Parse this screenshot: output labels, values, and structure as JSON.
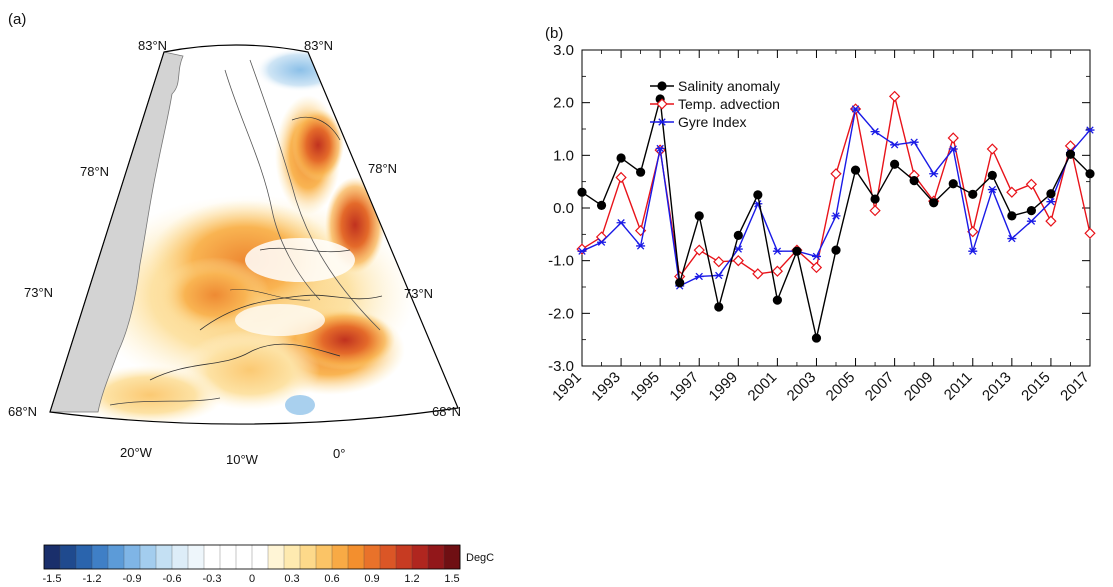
{
  "panel_a": {
    "label": "(a)",
    "lat_labels": [
      "83°N",
      "83°N",
      "78°N",
      "78°N",
      "73°N",
      "73°N",
      "68°N",
      "68°N"
    ],
    "lon_labels": [
      "20°W",
      "10°W",
      "0°"
    ]
  },
  "colorbar": {
    "unit": "DegC",
    "tick_labels": [
      "-1.5",
      "-1.2",
      "-0.9",
      "-0.6",
      "-0.3",
      "0",
      "0.3",
      "0.6",
      "0.9",
      "1.2",
      "1.5"
    ],
    "colors": [
      "#1a2f6b",
      "#1f4a8e",
      "#2a64ad",
      "#3f7fc6",
      "#5c9bd8",
      "#7fb5e6",
      "#a3cdee",
      "#c4e0f3",
      "#ddedf8",
      "#eef6fb",
      "#ffffff",
      "#ffffff",
      "#ffffff",
      "#ffffff",
      "#fff5d6",
      "#feeab0",
      "#fdd98a",
      "#fbc466",
      "#f8aa45",
      "#f38f2e",
      "#e9722a",
      "#db5626",
      "#c73b22",
      "#b0261f",
      "#92171a",
      "#6f0f13"
    ]
  },
  "panel_b": {
    "label": "(b)"
  },
  "chart_data": {
    "type": "line",
    "x": [
      1991,
      1992,
      1993,
      1994,
      1995,
      1996,
      1997,
      1998,
      1999,
      2000,
      2001,
      2002,
      2003,
      2004,
      2005,
      2006,
      2007,
      2008,
      2009,
      2010,
      2011,
      2012,
      2013,
      2014,
      2015,
      2016,
      2017
    ],
    "x_tick_labels": [
      "1991",
      "1993",
      "1995",
      "1997",
      "1999",
      "2001",
      "2003",
      "2005",
      "2007",
      "2009",
      "2011",
      "2013",
      "2015",
      "2017"
    ],
    "y_tick_labels": [
      "3.0",
      "2.0",
      "1.0",
      "0.0",
      "-1.0",
      "-2.0",
      "-3.0"
    ],
    "xlim": [
      1991,
      2017
    ],
    "ylim": [
      -3,
      3
    ],
    "legend_position": "top-left",
    "series": [
      {
        "name": "Salinity anomaly",
        "color": "#000000",
        "marker": "filled-circle",
        "values": [
          0.3,
          0.05,
          0.95,
          0.68,
          2.07,
          -1.42,
          -0.15,
          -1.88,
          -0.52,
          0.25,
          -1.75,
          -0.82,
          -2.47,
          -0.8,
          0.72,
          0.17,
          0.83,
          0.52,
          0.1,
          0.46,
          0.26,
          0.62,
          -0.15,
          -0.05,
          0.27,
          1.02,
          0.65
        ]
      },
      {
        "name": "Temp. advection",
        "color": "#e8131a",
        "marker": "open-diamond",
        "values": [
          -0.78,
          -0.55,
          0.58,
          -0.43,
          1.1,
          -1.3,
          -0.8,
          -1.02,
          -1.0,
          -1.25,
          -1.2,
          -0.8,
          -1.13,
          0.65,
          1.88,
          -0.05,
          2.12,
          0.62,
          0.13,
          1.33,
          -0.45,
          1.12,
          0.3,
          0.45,
          -0.25,
          1.18,
          -0.48
        ]
      },
      {
        "name": "Gyre Index",
        "color": "#1a1ae6",
        "marker": "asterisk",
        "values": [
          -0.82,
          -0.65,
          -0.28,
          -0.72,
          1.13,
          -1.48,
          -1.3,
          -1.28,
          -0.78,
          0.08,
          -0.82,
          -0.82,
          -0.92,
          -0.15,
          1.88,
          1.45,
          1.2,
          1.25,
          0.65,
          1.12,
          -0.82,
          0.35,
          -0.58,
          -0.25,
          0.12,
          1.05,
          1.48
        ]
      }
    ]
  }
}
